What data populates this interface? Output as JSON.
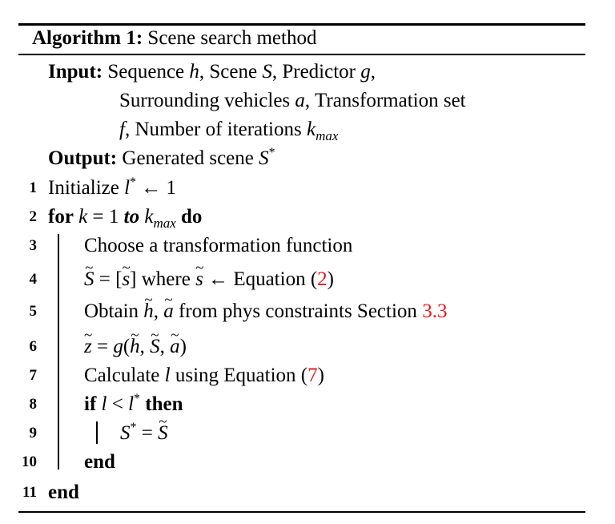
{
  "algorithm": {
    "label": "Algorithm 1:",
    "title": "Scene search method"
  },
  "input": {
    "label": "Input:",
    "lines": [
      [
        "Sequence ",
        "h",
        ", Scene ",
        "S",
        ", Predictor ",
        "g",
        ","
      ],
      [
        "Surrounding vehicles ",
        "a",
        ", Transformation set"
      ],
      [
        "f",
        ", Number of iterations ",
        "k",
        "max"
      ]
    ]
  },
  "output": {
    "label": "Output:",
    "text": "Generated scene ",
    "var": "S",
    "sup": "*"
  },
  "lines": [
    {
      "num": "1",
      "kw1": "",
      "text": "Initialize ",
      "math": "l",
      "sup": "*",
      "rest": " ← 1"
    },
    {
      "num": "2",
      "kw_for": "for",
      "kv": "k",
      "eq": " = 1 ",
      "kw_to": "to",
      "kmax": "k",
      "kmax_sub": "max",
      "kw_do": "do"
    },
    {
      "num": "3",
      "text": "Choose a transformation function"
    },
    {
      "num": "4",
      "S": "S",
      "eq": " = [",
      "s": "s",
      "mid": "] where ",
      "s2": "s",
      "arrow": " ← Equation (",
      "ref": "2",
      "close": ")"
    },
    {
      "num": "5",
      "pre": "Obtain ",
      "h": "h",
      "comma": ", ",
      "a": "a",
      "mid": " from phys constraints Section ",
      "ref": "3.3"
    },
    {
      "num": "6",
      "z": "z",
      "eq": " = ",
      "g": "g",
      "open": "(",
      "h": "h",
      "c1": ", ",
      "S": "S",
      "c2": ", ",
      "a": "a",
      "close": ")"
    },
    {
      "num": "7",
      "pre": "Calculate ",
      "l": "l",
      "mid": " using Equation (",
      "ref": "7",
      "close": ")"
    },
    {
      "num": "8",
      "kw_if": "if",
      "l": "l",
      "lt": " < ",
      "l2": "l",
      "sup": "*",
      "kw_then": "then"
    },
    {
      "num": "9",
      "S": "S",
      "sup": "*",
      "eq": " = ",
      "S2": "S"
    },
    {
      "num": "10",
      "kw_end": "end"
    },
    {
      "num": "11",
      "kw_end": "end"
    }
  ]
}
